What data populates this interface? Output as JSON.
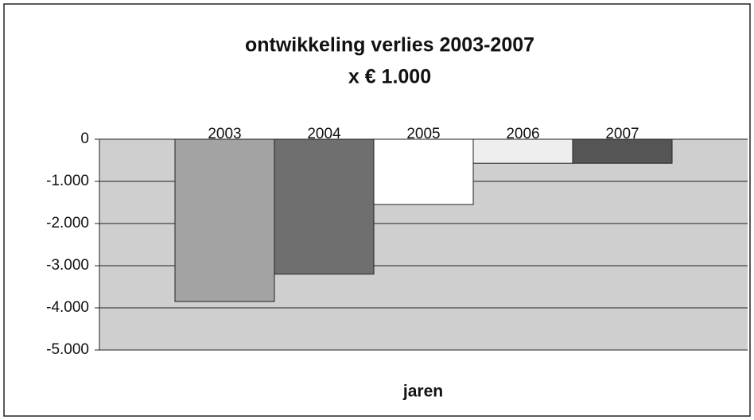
{
  "chart_data": {
    "type": "bar",
    "title": "ontwikkeling verlies 2003-2007",
    "subtitle": "x € 1.000",
    "x_label": "jaren",
    "categories": [
      "2003",
      "2004",
      "2005",
      "2006",
      "2007"
    ],
    "values": [
      -3850,
      -3200,
      -1550,
      -570,
      -570
    ],
    "colors": [
      "#a3a3a3",
      "#6f6f6f",
      "#ffffff",
      "#eeeeee",
      "#555555"
    ],
    "ylim": [
      -5000,
      0
    ],
    "yticks": [
      0,
      {
        "value": -1000,
        "label": "-1.000"
      },
      {
        "value": -2000,
        "label": "-2.000"
      },
      {
        "value": -3000,
        "label": "-3.000"
      },
      {
        "value": -4000,
        "label": "-4.000"
      },
      {
        "value": -5000,
        "label": "-5.000"
      }
    ],
    "grid": true
  }
}
